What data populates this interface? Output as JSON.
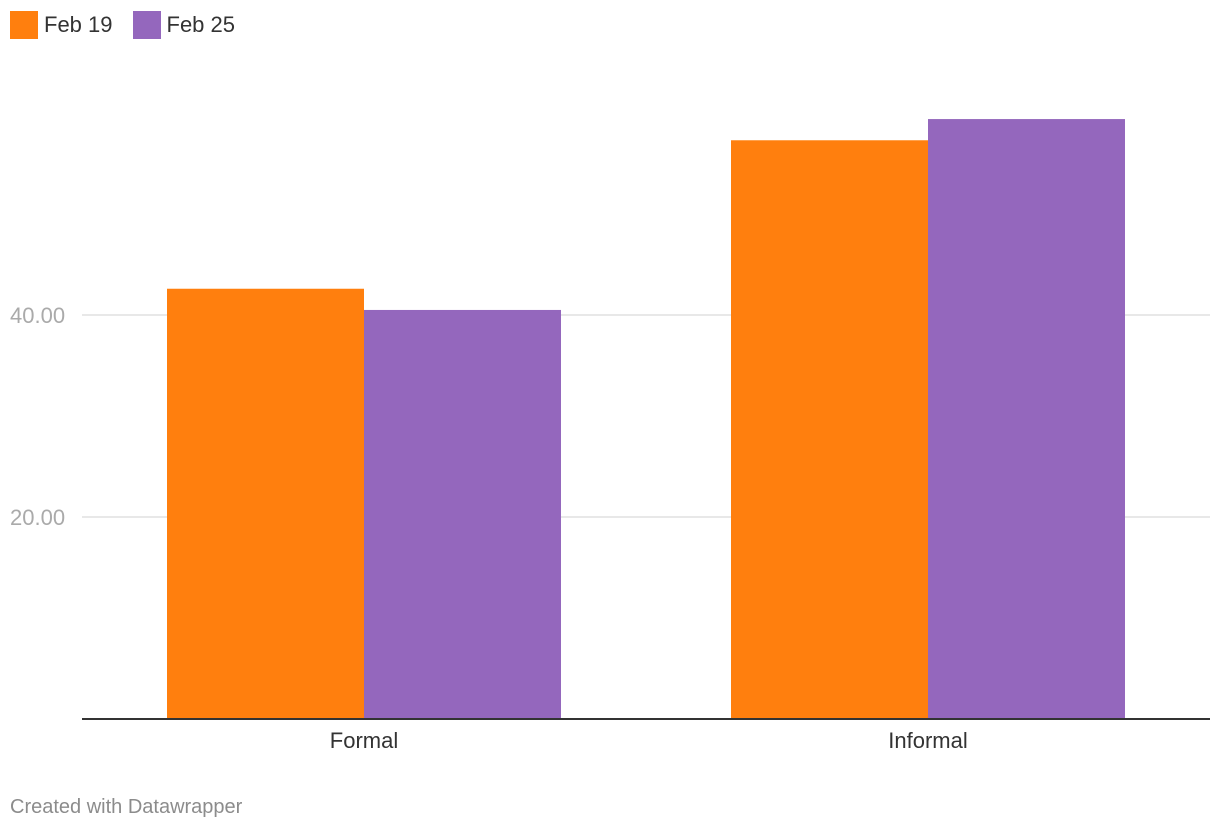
{
  "legend": [
    {
      "label": "Feb 19",
      "color": "#ff7f0e"
    },
    {
      "label": "Feb 25",
      "color": "#9467bd"
    }
  ],
  "chart_data": {
    "type": "bar",
    "categories": [
      "Formal",
      "Informal"
    ],
    "series": [
      {
        "name": "Feb 19",
        "values": [
          42.6,
          57.3
        ],
        "color": "#ff7f0e"
      },
      {
        "name": "Feb 25",
        "values": [
          40.5,
          59.4
        ],
        "color": "#9467bd"
      }
    ],
    "yticks": [
      20,
      40
    ],
    "ytick_labels": [
      "20.00",
      "40.00"
    ],
    "ylim": [
      0,
      60
    ],
    "title": "",
    "xlabel": "",
    "ylabel": "",
    "grid": true,
    "legend_position": "top-left"
  },
  "footer": {
    "credit": "Created with Datawrapper"
  }
}
